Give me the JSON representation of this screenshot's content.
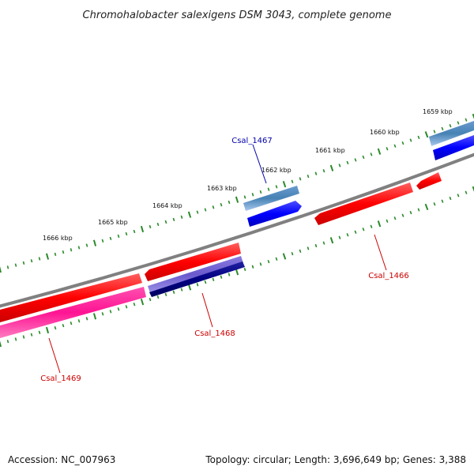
{
  "title": "Chromohalobacter salexigens DSM 3043, complete genome",
  "footer": {
    "accession": "Accession: NC_007963",
    "summary": "Topology: circular; Length: 3,696,649 bp; Genes: 3,388"
  },
  "scale_labels": [
    "1659 kbp",
    "1660 kbp",
    "1661 kbp",
    "1662 kbp",
    "1663 kbp",
    "1664 kbp",
    "1665 kbp",
    "1666 kbp"
  ],
  "gene_labels": [
    {
      "name": "Csal_1467",
      "color": "#0000aa"
    },
    {
      "name": "Csal_1466",
      "color": "#cc0000"
    },
    {
      "name": "Csal_1468",
      "color": "#cc0000"
    },
    {
      "name": "Csal_1469",
      "color": "#cc0000"
    }
  ],
  "colors": {
    "backbone": "#808080",
    "ticks": "#2a8a2a",
    "forward_cds": "#0000ff",
    "forward_gene": "#4682b4",
    "reverse_cds": "#ff0000",
    "reverse_gene_pink": "#ff1493",
    "reverse_gene_purple": "#6a5acd",
    "reverse_gene_navy": "#000080"
  }
}
